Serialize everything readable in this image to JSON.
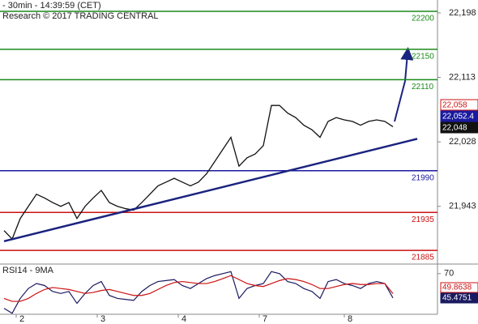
{
  "chart_data": {
    "type": "line",
    "title": "- 30min - 14:39:59 (CET)",
    "subtitle": "Research © 2017 TRADING CENTRAL",
    "x": [
      1,
      3,
      5,
      7,
      9,
      11,
      13,
      15,
      17,
      19,
      21,
      23,
      25,
      27,
      29,
      31,
      33,
      35,
      37,
      39,
      41,
      43,
      45,
      47,
      49,
      51,
      53,
      55,
      57,
      59,
      61,
      63,
      65,
      67,
      69,
      71,
      73,
      75,
      77,
      79,
      81,
      83,
      85,
      87,
      89,
      91,
      93,
      95,
      97
    ],
    "series": [
      {
        "name": "Price",
        "color": "#111111",
        "values": [
          21911,
          21900,
          21927,
          21943,
          21959,
          21954,
          21948,
          21943,
          21948,
          21927,
          21943,
          21954,
          21964,
          21948,
          21943,
          21940,
          21938,
          21948,
          21959,
          21970,
          21975,
          21980,
          21975,
          21970,
          21975,
          21986,
          22002,
          22018,
          22034,
          21996,
          22007,
          22012,
          22023,
          22076,
          22076,
          22066,
          22060,
          22050,
          22044,
          22034,
          22055,
          22060,
          22057,
          22055,
          22050,
          22055,
          22057,
          22055,
          22048
        ]
      }
    ],
    "trendline": {
      "color": "#1a237e",
      "x": [
        1,
        103
      ],
      "values": [
        21897,
        22032
      ]
    },
    "levels": [
      {
        "value": 22200,
        "label": "22200",
        "color": "#1a8a1a"
      },
      {
        "value": 22150,
        "label": "22150",
        "color": "#1a8a1a"
      },
      {
        "value": 22110,
        "label": "22110",
        "color": "#1a8a1a"
      },
      {
        "value": 21990,
        "label": "21990",
        "color": "#1a1aa0"
      },
      {
        "value": 21935,
        "label": "21935",
        "color": "#cc1111"
      },
      {
        "value": 21885,
        "label": "21885",
        "color": "#cc1111"
      }
    ],
    "last_labels": [
      {
        "label": "22,058",
        "color": "#cc1111"
      },
      {
        "label": "22,052.4",
        "color": "#1a1aa0"
      },
      {
        "label": "22,048",
        "color": "#111111"
      }
    ],
    "xlim": [
      0,
      108
    ],
    "xticks": [
      {
        "value": 4,
        "label": "2"
      },
      {
        "value": 24,
        "label": "3"
      },
      {
        "value": 44,
        "label": "4"
      },
      {
        "value": 64,
        "label": "7"
      },
      {
        "value": 85,
        "label": "8"
      }
    ],
    "ylim": [
      21868,
      22215
    ],
    "yticks": [
      {
        "value": 22198,
        "label": "22,198"
      },
      {
        "value": 22113,
        "label": "22,113"
      },
      {
        "value": 22028,
        "label": "22,028"
      },
      {
        "value": 21943,
        "label": "21,943"
      }
    ],
    "rsi": {
      "title": "RSI14 - 9MA",
      "ylim": [
        29,
        78
      ],
      "yticks": [
        70
      ],
      "series": [
        {
          "name": "RSI14",
          "color": "#1a1a60",
          "values": [
            35,
            30,
            45,
            55,
            60,
            58,
            52,
            50,
            52,
            40,
            50,
            58,
            62,
            48,
            45,
            44,
            43,
            52,
            58,
            62,
            63,
            64,
            58,
            55,
            60,
            65,
            68,
            70,
            72,
            45,
            55,
            58,
            60,
            72,
            70,
            62,
            60,
            55,
            52,
            45,
            62,
            64,
            60,
            58,
            55,
            60,
            62,
            60,
            45.4751
          ],
          "value_label": "45.4751"
        },
        {
          "name": "9MA",
          "color": "#cc1111",
          "values": [
            45,
            42,
            42,
            45,
            50,
            54,
            56,
            55,
            54,
            52,
            50,
            51,
            53,
            54,
            52,
            50,
            48,
            48,
            50,
            54,
            58,
            61,
            62,
            61,
            60,
            60,
            62,
            65,
            68,
            64,
            60,
            58,
            57,
            60,
            63,
            65,
            64,
            62,
            59,
            55,
            55,
            57,
            59,
            60,
            59,
            59,
            60,
            60,
            49.8638
          ],
          "value_label": "49.8638"
        }
      ]
    }
  }
}
